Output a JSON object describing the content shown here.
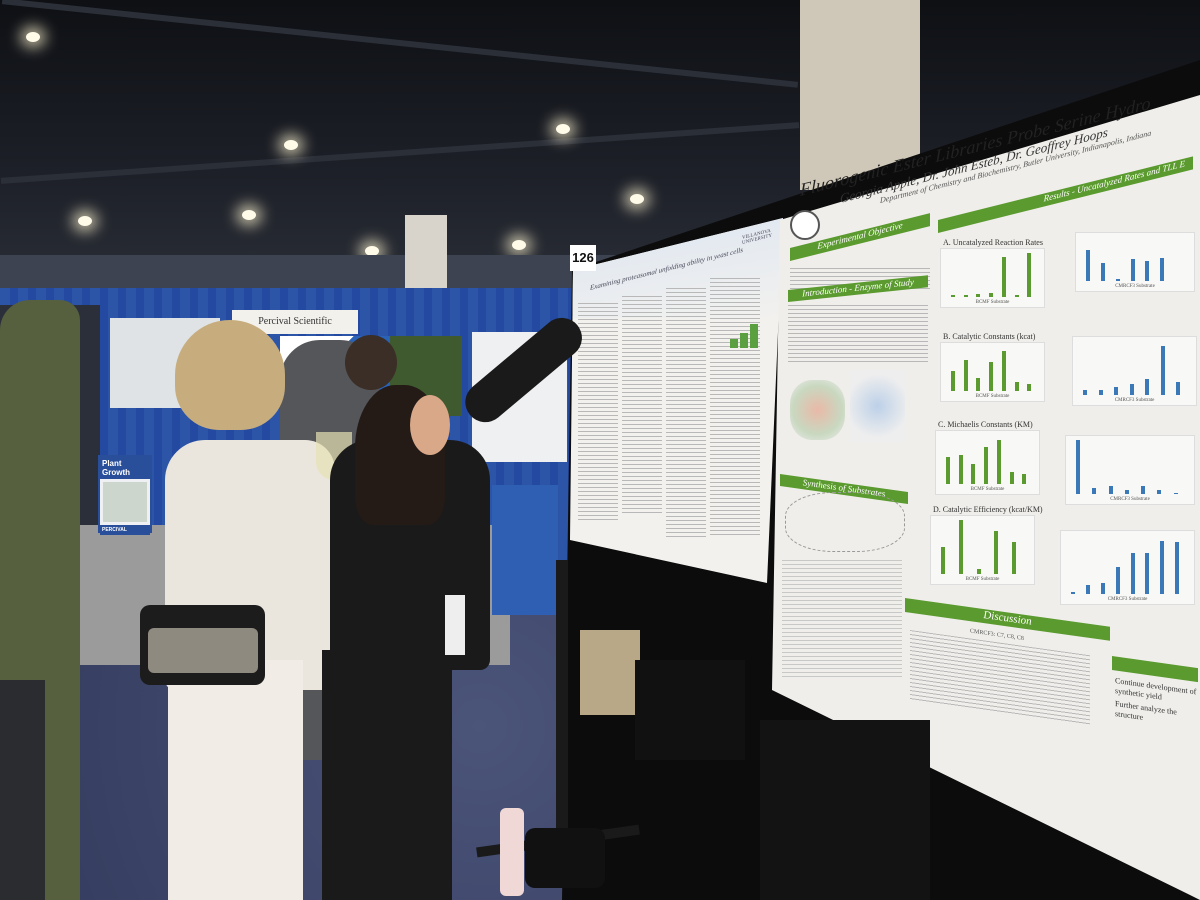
{
  "scene": {
    "description_label": "Poster session"
  },
  "booth": {
    "sign": "Percival Scientific",
    "plant_sign": "Plant Growth",
    "plant_brand": "PERCIVAL"
  },
  "left_poster": {
    "board_number": "126",
    "title": "Examining proteasomal unfolding ability in yeast cells",
    "institution": "VILLANOVA UNIVERSITY",
    "bars": [
      30,
      50,
      80
    ]
  },
  "right_poster": {
    "title": "Fluorogenic Ester Libraries Probe Serine Hydro",
    "authors": "Georgia Apple, Dr. John Esteb, Dr. Geoffrey Hoops",
    "department": "Department of Chemistry and Biochemistry, Butler University, Indianapolis, Indiana",
    "sections": {
      "objective": "Experimental Objective",
      "introduction": "Introduction - Enzyme of Study",
      "results": "Results - Uncatalyzed Rates and TLL E",
      "synthesis": "Synthesis of Substrates",
      "discussion": "Discussion"
    },
    "charts": [
      {
        "label": "A. Uncatalyzed Reaction Rates",
        "x_green": "BCMF Substrate",
        "x_blue": "CMRCF3 Substrate",
        "green": [
          5,
          4,
          6,
          8,
          90,
          5,
          100
        ],
        "blue": [
          70,
          40,
          5,
          50,
          45,
          52,
          0
        ]
      },
      {
        "label": "B. Catalytic Constants (kcat)",
        "x_green": "BCMF Substrate",
        "x_blue": "CMRCF3 Substrate",
        "green": [
          45,
          70,
          30,
          65,
          90,
          20,
          15
        ],
        "blue": [
          10,
          10,
          15,
          20,
          30,
          90,
          25
        ]
      },
      {
        "label": "C. Michaelis Constants (KM)",
        "x_green": "BCMF Substrate",
        "x_blue": "CMRCF3 Substrate",
        "green": [
          55,
          60,
          40,
          75,
          90,
          25,
          20
        ],
        "blue": [
          100,
          12,
          14,
          8,
          15,
          7,
          2
        ]
      },
      {
        "label": "D. Catalytic Efficiency (kcat/KM)",
        "x_green": "BCMF Substrate",
        "x_blue": "CMRCF3 Substrate",
        "green": [
          50,
          100,
          10,
          80,
          60
        ],
        "blue": [
          3,
          15,
          18,
          45,
          70,
          70,
          90,
          88
        ]
      }
    ],
    "discussion_points": [
      "CMRCF3: C7, C8, C8",
      "Continue development of synthetic yield",
      "Further analyze the structure"
    ]
  },
  "colors": {
    "poster_green": "#5a9a2e",
    "chart_blue": "#3a78b8",
    "curtain_blue": "#2c55a8",
    "carpet": "#3a4468"
  }
}
